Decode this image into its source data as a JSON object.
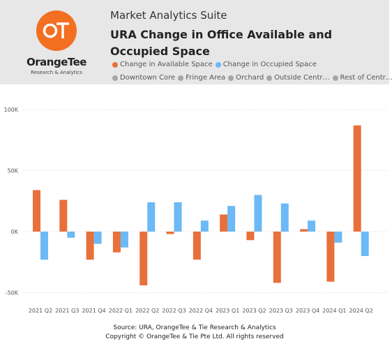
{
  "header": {
    "suite_title": "Market Analytics Suite",
    "chart_title": "URA Change in Office Available and Occupied Space",
    "logo": {
      "brand": "OrangeTee",
      "tagline": "Research & Analytics",
      "monogram": "OT"
    },
    "legend_series": [
      {
        "label": "Change in Available Space",
        "color": "#e8703a"
      },
      {
        "label": "Change in Occupied Space",
        "color": "#6cb9f5"
      }
    ],
    "legend_filters": [
      {
        "label": "Downtown Core",
        "color": "#a6a6a6"
      },
      {
        "label": "Fringe Area",
        "color": "#a6a6a6"
      },
      {
        "label": "Orchard",
        "color": "#a6a6a6"
      },
      {
        "label": "Outside Centr…",
        "color": "#a6a6a6"
      },
      {
        "label": "Rest of Centr…",
        "color": "#a6a6a6"
      }
    ]
  },
  "chart_data": {
    "type": "bar",
    "categories": [
      "2021 Q2",
      "2021 Q3",
      "2021 Q4",
      "2022 Q1",
      "2022 Q2",
      "2022 Q3",
      "2022 Q4",
      "2023 Q1",
      "2023 Q2",
      "2023 Q3",
      "2023 Q4",
      "2024 Q1",
      "2024 Q2"
    ],
    "series": [
      {
        "name": "Change in Available Space",
        "color": "#e8703a",
        "values": [
          34000,
          26000,
          -23000,
          -17000,
          -44000,
          -2000,
          -23000,
          14000,
          -7000,
          -42000,
          2000,
          -41000,
          87000
        ]
      },
      {
        "name": "Change in Occupied Space",
        "color": "#6cb9f5",
        "values": [
          -23000,
          -5000,
          -10000,
          -13000,
          24000,
          24000,
          9000,
          21000,
          30000,
          23000,
          9000,
          -9000,
          -20000
        ]
      }
    ],
    "ylim": [
      -50000,
      100000
    ],
    "yticks": [
      {
        "value": 100000,
        "label": "100K"
      },
      {
        "value": 50000,
        "label": "50K"
      },
      {
        "value": 0,
        "label": "0K"
      },
      {
        "value": -50000,
        "label": "-50K"
      }
    ],
    "grid": true,
    "legend": "top"
  },
  "footer": {
    "source": "Source: URA, OrangeTee & Tie Research & Analytics",
    "copyright": "Copyright © OrangeTee & Tie Pte Ltd. All rights reserved"
  }
}
